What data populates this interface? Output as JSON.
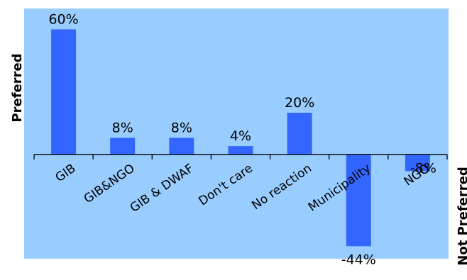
{
  "chart_data": {
    "type": "bar",
    "title": "",
    "ylabel_top": "Preferred",
    "ylabel_bottom": "Not Preferred",
    "categories": [
      "GIB",
      "GIB&NGO",
      "GIB & DWAF",
      "Don't care",
      "No reaction",
      "Municipality",
      "NGO"
    ],
    "values": [
      60,
      8,
      8,
      4,
      20,
      -44,
      -8
    ],
    "data_labels": [
      "60%",
      "8%",
      "8%",
      "4%",
      "20%",
      "-44%",
      "-8%"
    ],
    "ylim": [
      -50,
      70
    ],
    "grid": false,
    "legend": "none"
  },
  "colors": {
    "plot_background": "#99ccff",
    "bar": "#3366ff",
    "axis": "#000000"
  }
}
